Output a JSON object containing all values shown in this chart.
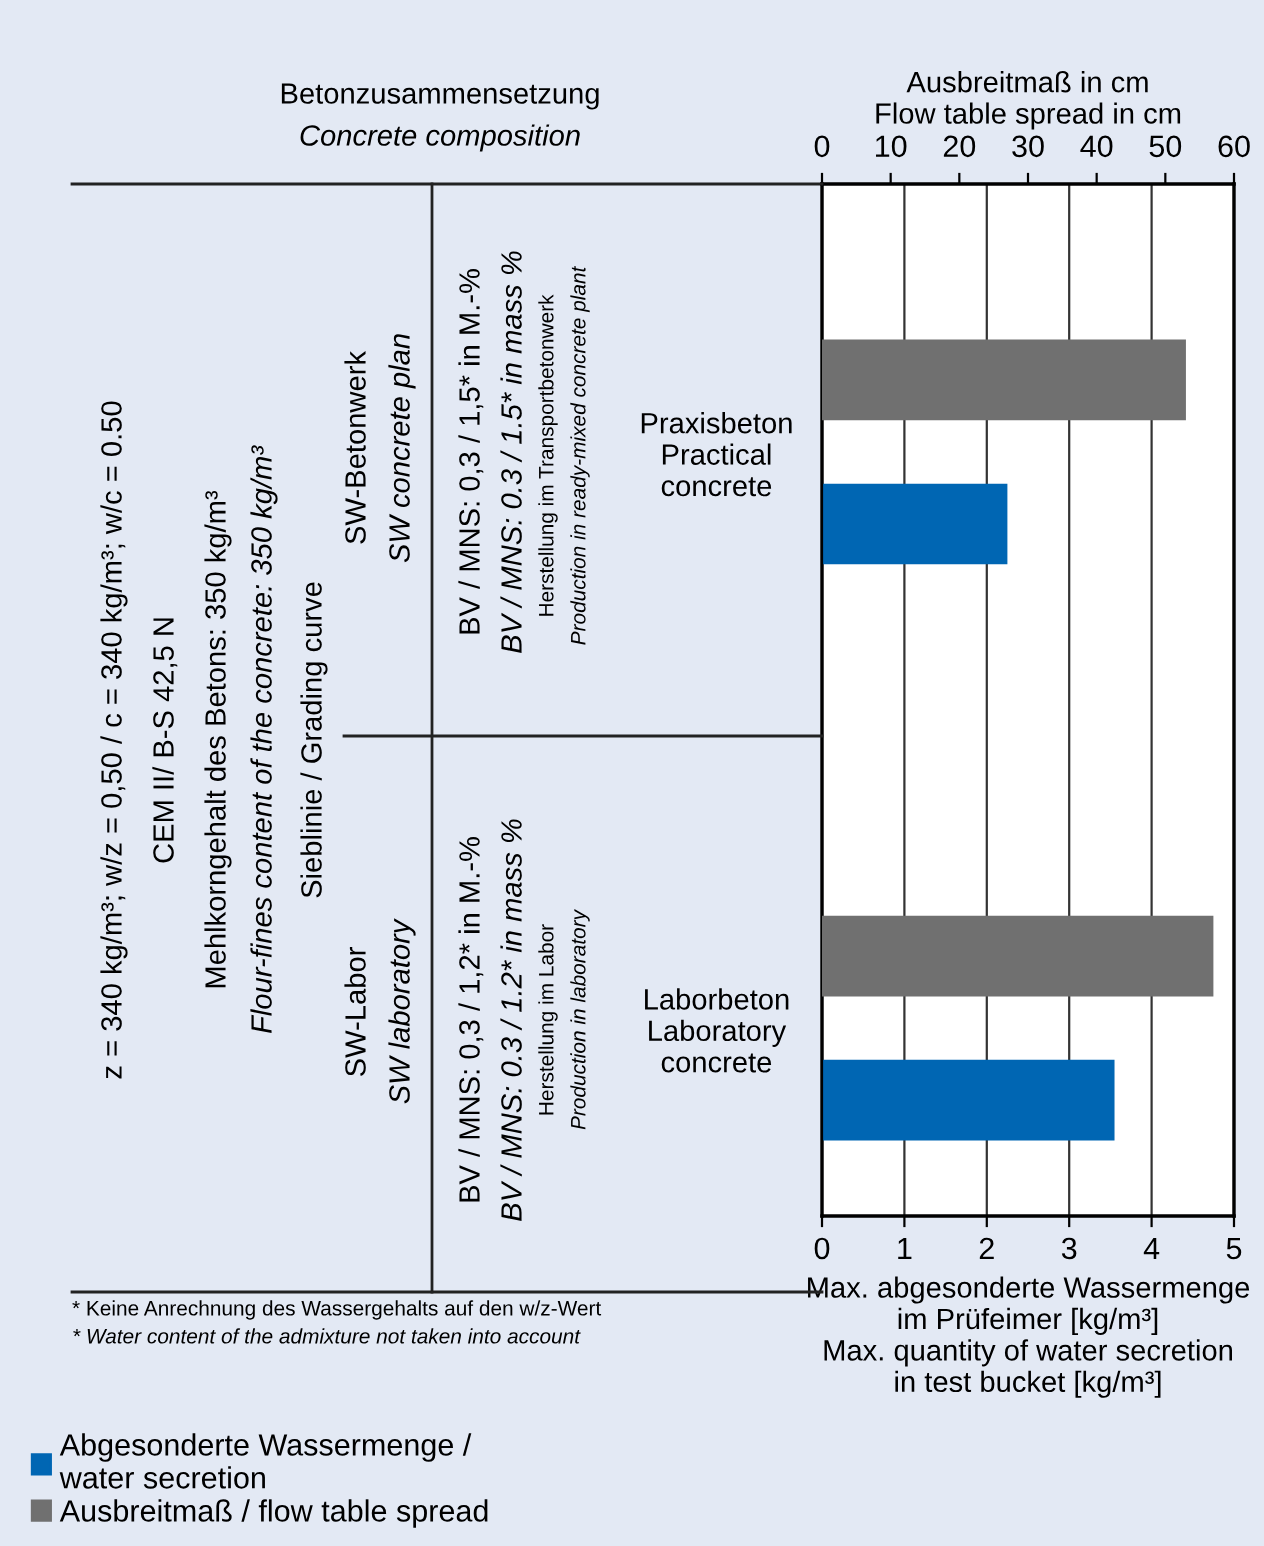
{
  "chart_data": {
    "type": "bar",
    "orientation": "horizontal",
    "categories": [
      "Praxisbeton\nPractical\nconcrete",
      "Laborbeton\nLaboratory\nconcrete"
    ],
    "series": [
      {
        "name": "Ausbreitmaß / flow table spread",
        "color": "#707070",
        "axis": "x2",
        "values": [
          53,
          57
        ]
      },
      {
        "name": "Abgesonderte Wassermenge /\nwater secretion",
        "color": "#0066b3",
        "values": [
          2.25,
          3.55
        ]
      }
    ],
    "xlabel": "Max. abgesonderte Wassermenge\nim Prüfeimer [kg/m³]\nMax. quantity of water secretion\nin test bucket [kg/m³]",
    "x2label": "Ausbreitmaß in cm\nFlow table spread in cm",
    "xlim": [
      0,
      5
    ],
    "xticks": [
      0,
      1,
      2,
      3,
      4,
      5
    ],
    "x2lim": [
      0,
      60
    ],
    "x2ticks": [
      0,
      10,
      20,
      30,
      40,
      50,
      60
    ],
    "grid": "x",
    "legend": "bottom left",
    "annotations": [
      "Betonzusammensetzung",
      "Concrete composition",
      "z = 340 kg/m³; w/z = 0,50 / c = 340 kg/m³; w/c = 0.50",
      "CEM II/ B-S 42,5 N",
      "Mehlkorngehalt des Betons: 350 kg/m³",
      "Flour-fines content of the concrete: 350 kg/m³",
      "Sieblinie / Grading curve",
      "SW-Betonwerk",
      "SW concrete plan",
      "SW-Labor",
      "SW laboratory",
      "BV / MNS: 0,3 / 1,5* in M.-%",
      "BV / MNS: 0.3 / 1.5* in mass %",
      "Herstellung im Transportbetonwerk",
      "Production in ready-mixed concrete plant",
      "BV / MNS: 0,3 / 1,2* in M.-%",
      "BV / MNS: 0.3 / 1.2* in mass %",
      "Herstellung im Labor",
      "Production in laboratory",
      "* Keine Anrechnung des Wassergehalts auf den w/z-Wert",
      "* Water content of the admixture not taken into account"
    ]
  }
}
